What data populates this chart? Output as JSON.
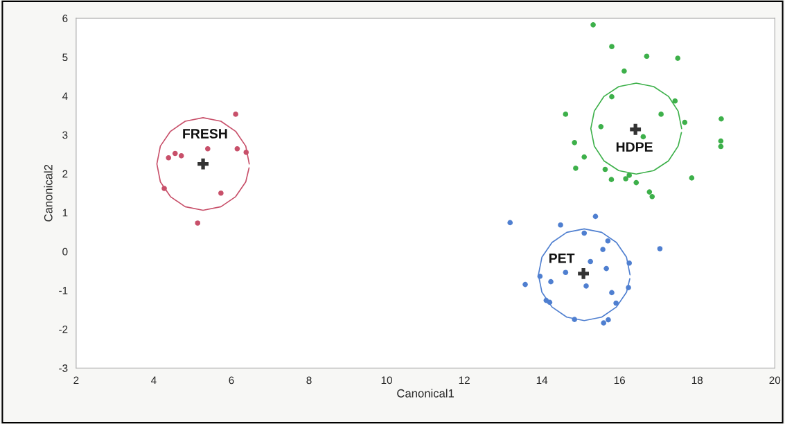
{
  "chart_data": {
    "type": "scatter",
    "xlabel": "Canonical1",
    "ylabel": "Canonical2",
    "xlim": [
      2,
      20
    ],
    "ylim": [
      -3,
      6
    ],
    "xticks": [
      2,
      4,
      6,
      8,
      10,
      12,
      14,
      16,
      18,
      20
    ],
    "yticks": [
      -3,
      -2,
      -1,
      0,
      1,
      2,
      3,
      4,
      5,
      6
    ],
    "grid": false,
    "marker": "circle",
    "series": [
      {
        "name": "FRESH",
        "color": "#c8506a",
        "x": [
          6.11,
          5.39,
          6.15,
          6.38,
          4.38,
          4.55,
          4.71,
          4.27,
          5.73,
          5.13
        ],
        "values": [
          3.53,
          2.64,
          2.64,
          2.55,
          2.41,
          2.52,
          2.46,
          1.62,
          1.5,
          0.73
        ]
      },
      {
        "name": "HDPE",
        "color": "#3db04a",
        "x": [
          15.32,
          15.8,
          16.7,
          17.5,
          16.12,
          15.8,
          17.43,
          14.61,
          17.07,
          17.68,
          18.62,
          15.52,
          16.61,
          14.84,
          18.61,
          18.61,
          15.09,
          14.87,
          15.63,
          15.79,
          16.16,
          16.25,
          16.43,
          17.86,
          16.77,
          16.84
        ],
        "values": [
          5.83,
          5.27,
          5.02,
          4.97,
          4.64,
          3.98,
          3.87,
          3.53,
          3.53,
          3.32,
          3.41,
          3.21,
          2.95,
          2.8,
          2.84,
          2.7,
          2.43,
          2.14,
          2.11,
          1.85,
          1.87,
          1.96,
          1.77,
          1.89,
          1.53,
          1.41
        ]
      },
      {
        "name": "PET",
        "color": "#4f7fd0",
        "x": [
          13.18,
          15.38,
          14.48,
          15.09,
          15.7,
          15.57,
          17.04,
          16.25,
          15.25,
          15.66,
          14.61,
          13.95,
          16.23,
          15.14,
          14.23,
          13.57,
          15.8,
          15.91,
          14.11,
          14.2,
          14.84,
          15.59,
          15.71
        ],
        "values": [
          0.74,
          0.9,
          0.68,
          0.47,
          0.27,
          0.05,
          0.07,
          -0.3,
          -0.26,
          -0.44,
          -0.54,
          -0.64,
          -0.93,
          -0.89,
          -0.78,
          -0.85,
          -1.06,
          -1.33,
          -1.26,
          -1.31,
          -1.75,
          -1.84,
          -1.76
        ]
      },
      {
        "type": "line",
        "color": "#c8506a",
        "marker": "none",
        "x": [
          6.46,
          6.37,
          6.11,
          5.73,
          5.27,
          4.81,
          4.43,
          4.17,
          4.08,
          4.17,
          4.43,
          4.81,
          5.27,
          5.73,
          6.11,
          6.37,
          6.455
        ],
        "values": [
          2.25,
          2.71,
          3.09,
          3.35,
          3.44,
          3.35,
          3.09,
          2.71,
          2.25,
          1.79,
          1.41,
          1.15,
          1.06,
          1.15,
          1.41,
          1.79,
          2.15
        ]
      },
      {
        "type": "line",
        "color": "#3db04a",
        "marker": "none",
        "x": [
          17.6,
          17.51,
          17.26,
          16.88,
          16.43,
          15.98,
          15.6,
          15.35,
          15.26,
          15.35,
          15.6,
          15.98,
          16.43,
          16.88,
          17.26,
          17.51,
          17.595
        ],
        "values": [
          3.16,
          3.61,
          3.99,
          4.24,
          4.33,
          4.24,
          3.99,
          3.61,
          3.16,
          2.71,
          2.33,
          2.08,
          1.99,
          2.08,
          2.33,
          2.71,
          3.06
        ]
      },
      {
        "type": "line",
        "color": "#4f7fd0",
        "marker": "none",
        "x": [
          16.27,
          16.18,
          15.92,
          15.54,
          15.09,
          14.64,
          14.26,
          14.0,
          13.91,
          14.0,
          14.26,
          14.64,
          15.09,
          15.54,
          15.92,
          16.18,
          16.265
        ],
        "values": [
          -0.6,
          -0.15,
          0.23,
          0.49,
          0.58,
          0.49,
          0.23,
          -0.15,
          -0.6,
          -1.05,
          -1.43,
          -1.69,
          -1.78,
          -1.69,
          -1.43,
          -1.05,
          -0.7
        ]
      },
      {
        "color": "#333333",
        "marker": "cross",
        "x": [
          5.27,
          16.41,
          15.07
        ],
        "values": [
          2.25,
          3.14,
          -0.57
        ]
      }
    ]
  }
}
